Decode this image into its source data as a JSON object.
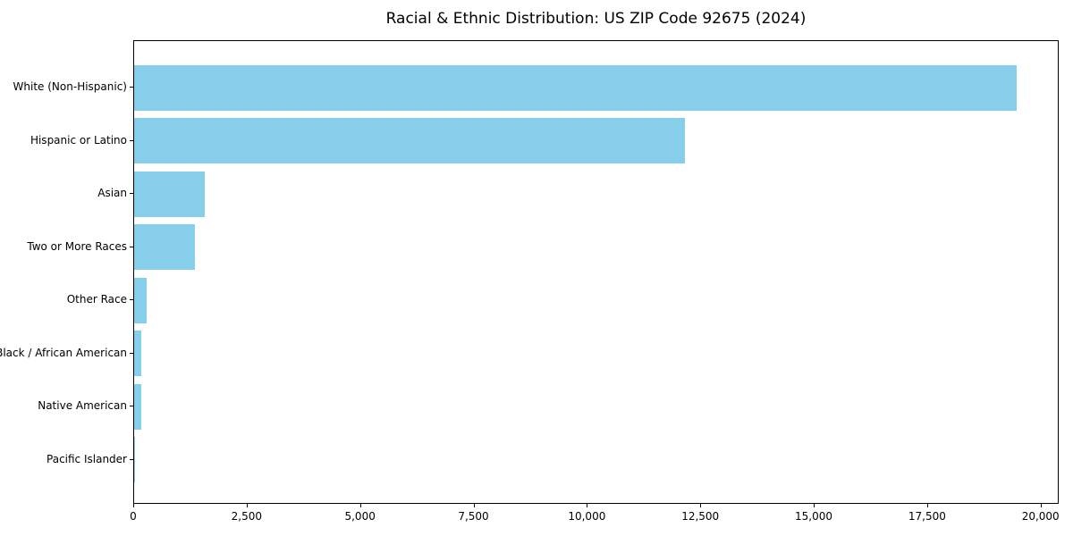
{
  "chart_data": {
    "type": "bar",
    "orientation": "horizontal",
    "title": "Racial & Ethnic Distribution: US ZIP Code 92675 (2024)",
    "categories": [
      "White (Non-Hispanic)",
      "Hispanic or Latino",
      "Asian",
      "Two or More Races",
      "Other Race",
      "Black / African American",
      "Native American",
      "Pacific Islander"
    ],
    "values": [
      19450,
      12140,
      1560,
      1340,
      280,
      160,
      150,
      10
    ],
    "xlabel": "",
    "ylabel": "",
    "xlim": [
      0,
      20400
    ],
    "x_ticks": [
      0,
      2500,
      5000,
      7500,
      10000,
      12500,
      15000,
      17500,
      20000
    ],
    "x_tick_labels": [
      "0",
      "2,500",
      "5,000",
      "7,500",
      "10,000",
      "12,500",
      "15,000",
      "17,500",
      "20,000"
    ],
    "bar_color": "#87CEEB",
    "grid": false,
    "legend": null,
    "sort_order": "descending"
  },
  "colors": {
    "background": "#ffffff",
    "text": "#000000",
    "spine": "#000000",
    "bar": "#87CEEB"
  }
}
